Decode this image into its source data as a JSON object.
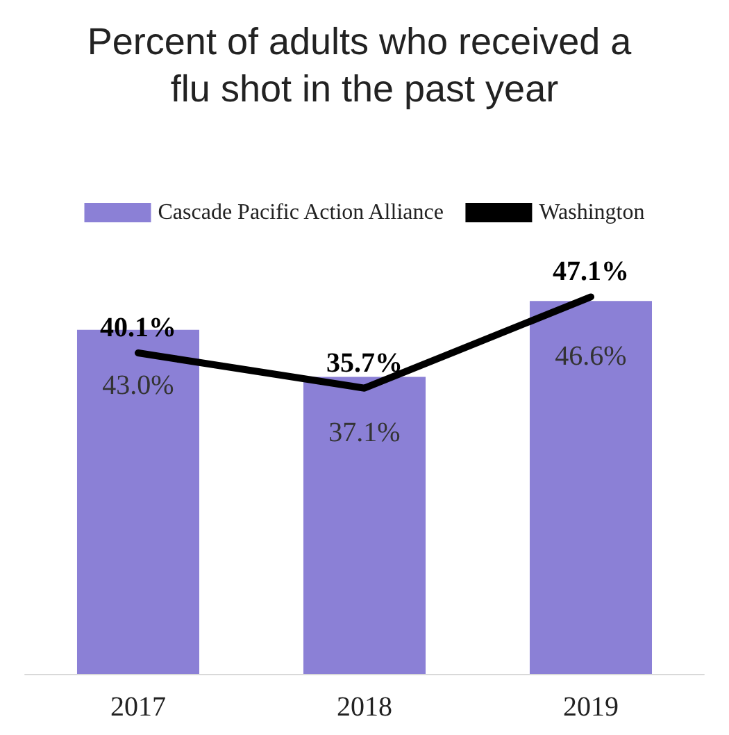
{
  "chart_data": {
    "type": "bar",
    "title": "Percent of adults who received a flu shot in the past year",
    "categories": [
      "2017",
      "2018",
      "2019"
    ],
    "series": [
      {
        "name": "Cascade Pacific Action Alliance",
        "color": "#8b80d6",
        "values": [
          43.0,
          37.1,
          46.6
        ],
        "value_labels": [
          "43.0%",
          "37.1%",
          "46.6%"
        ]
      },
      {
        "name": "Washington",
        "type": "line",
        "color": "#000000",
        "values": [
          40.1,
          35.7,
          47.1
        ],
        "value_labels": [
          "40.1%",
          "35.7%",
          "47.1%"
        ]
      }
    ],
    "legend": "top",
    "marker": "none"
  }
}
